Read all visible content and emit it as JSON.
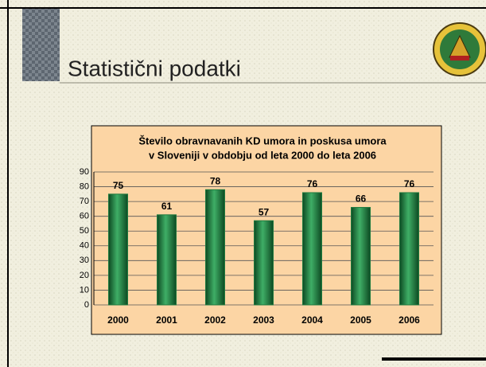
{
  "heading": "Statistični podatki",
  "chart_data": {
    "type": "bar",
    "title": [
      "Število obravnavanih KD umora in poskusa umora",
      "v Sloveniji v obdobju od leta 2000 do leta 2006"
    ],
    "categories": [
      "2000",
      "2001",
      "2002",
      "2003",
      "2004",
      "2005",
      "2006"
    ],
    "values": [
      75,
      61,
      78,
      57,
      76,
      66,
      76
    ],
    "color": "#1f7a3f",
    "ylim": [
      0,
      90
    ],
    "yticks": [
      0,
      10,
      20,
      30,
      40,
      50,
      60,
      70,
      80,
      90
    ],
    "grid": true
  }
}
